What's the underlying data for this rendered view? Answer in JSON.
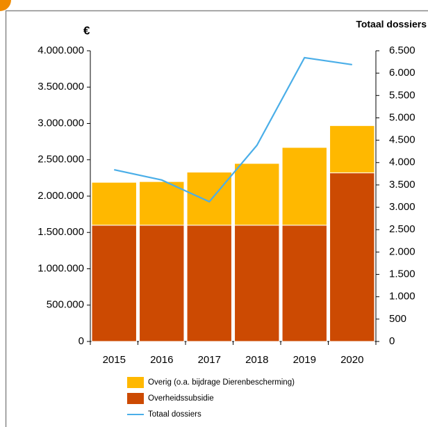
{
  "chart_data": {
    "type": "bar",
    "y_label": "€",
    "y2_label": "Totaal dossiers",
    "categories": [
      "2015",
      "2016",
      "2017",
      "2018",
      "2019",
      "2020"
    ],
    "series": [
      {
        "name": "Overig (o.a. bijdrage Dierenbescherming)",
        "type": "bar",
        "color": "#ffb800",
        "values": [
          590000,
          600000,
          730000,
          850000,
          1070000,
          650000
        ]
      },
      {
        "name": "Overheidssubsidie",
        "type": "bar",
        "color": "#cc4a02",
        "values": [
          1600000,
          1600000,
          1600000,
          1600000,
          1600000,
          2320000
        ]
      },
      {
        "name": "Totaal dossiers",
        "type": "line",
        "axis": "y2",
        "color": "#4aaee8",
        "values": [
          3840,
          3610,
          3125,
          4385,
          6345,
          6190
        ]
      }
    ],
    "stacked": true,
    "ylim": [
      0,
      4000000
    ],
    "yticks": [
      0,
      {
        "value": 500000,
        "label": "500.000"
      },
      {
        "value": 1000000,
        "label": "1.000.000"
      },
      {
        "value": 1500000,
        "label": "1.500.000"
      },
      {
        "value": 2000000,
        "label": "2.000.000"
      },
      {
        "value": 2500000,
        "label": "2.500.000"
      },
      {
        "value": 3000000,
        "label": "3.000.000"
      },
      {
        "value": 3500000,
        "label": "3.500.000"
      },
      {
        "value": 4000000,
        "label": "4.000.000"
      }
    ],
    "y2lim": [
      0,
      6500
    ],
    "y2ticks": [
      0,
      500,
      {
        "value": 1000,
        "label": "1.000"
      },
      {
        "value": 1500,
        "label": "1.500"
      },
      {
        "value": 2000,
        "label": "2.000"
      },
      {
        "value": 2500,
        "label": "2.500"
      },
      {
        "value": 3000,
        "label": "3.000"
      },
      {
        "value": 3500,
        "label": "3.500"
      },
      {
        "value": 4000,
        "label": "4.000"
      },
      {
        "value": 4500,
        "label": "4.500"
      },
      {
        "value": 5000,
        "label": "5.000"
      },
      {
        "value": 5500,
        "label": "5.500"
      },
      {
        "value": 6000,
        "label": "6.000"
      },
      {
        "value": 6500,
        "label": "6.500"
      }
    ],
    "grid": false,
    "legend": "bottom"
  }
}
